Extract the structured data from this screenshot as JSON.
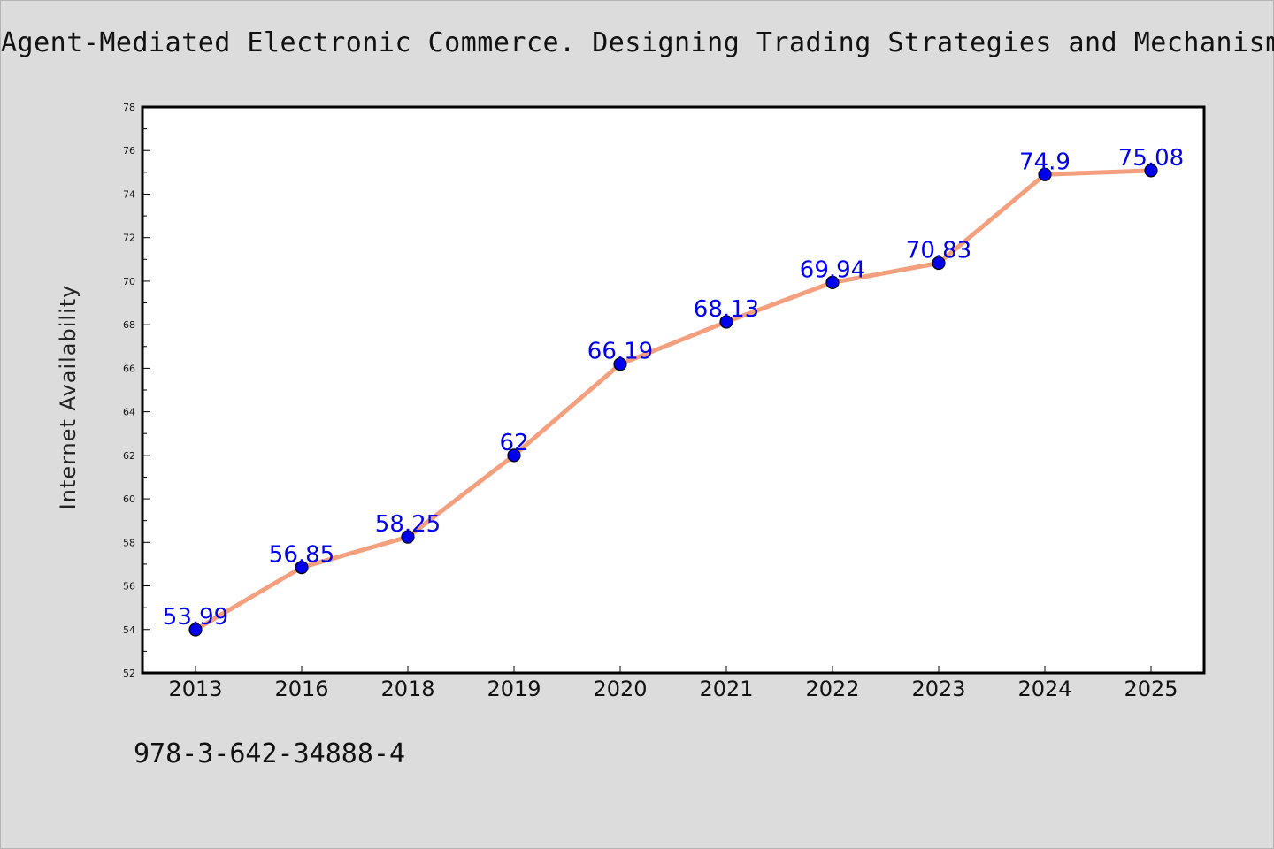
{
  "title": "Agent-Mediated Electronic Commerce. Designing Trading Strategies and Mechanisms",
  "footer_text": "978-3-642-34888-4",
  "colors": {
    "background": "#dcdcdc",
    "plot_background": "#ffffff",
    "line": "#f4a07f",
    "marker": "#0000ee",
    "data_label": "#0000ee"
  },
  "chart_data": {
    "type": "line",
    "title": "Agent-Mediated Electronic Commerce. Designing Trading Strategies and Mechanisms",
    "xlabel": "",
    "ylabel": "Internet Availability",
    "categories": [
      "2013",
      "2016",
      "2018",
      "2019",
      "2020",
      "2021",
      "2022",
      "2023",
      "2024",
      "2025"
    ],
    "values": [
      53.99,
      56.85,
      58.25,
      62,
      66.19,
      68.13,
      69.94,
      70.83,
      74.9,
      75.08
    ],
    "data_labels": [
      "53.99",
      "56.85",
      "58.25",
      "62",
      "66.19",
      "68.13",
      "69.94",
      "70.83",
      "74.9",
      "75.08"
    ],
    "ylim": [
      52,
      78
    ],
    "yticks": [
      52,
      54,
      56,
      58,
      60,
      62,
      64,
      66,
      68,
      70,
      72,
      74,
      76,
      78
    ],
    "grid": false,
    "legend": "none"
  }
}
